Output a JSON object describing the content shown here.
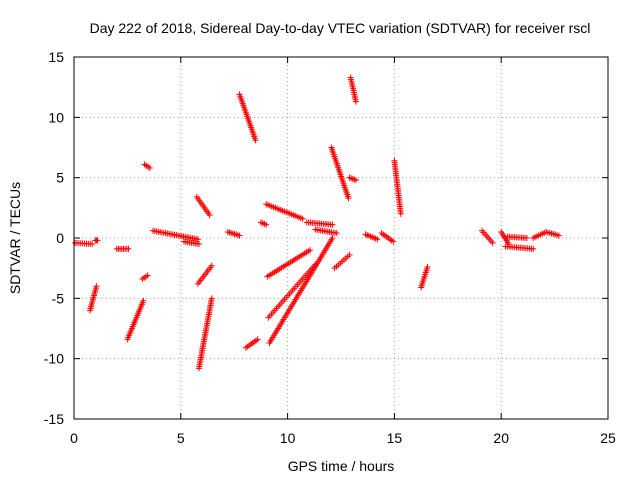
{
  "chart_data": {
    "type": "scatter",
    "title": "Day 222 of 2018, Sidereal Day-to-day VTEC variation (SDTVAR) for receiver rscl",
    "xlabel": "GPS time / hours",
    "ylabel": "SDTVAR / TECUs",
    "xlim": [
      0,
      25
    ],
    "ylim": [
      -15,
      15
    ],
    "xticks": [
      0,
      5,
      10,
      15,
      20,
      25
    ],
    "yticks": [
      -15,
      -10,
      -5,
      0,
      5,
      10,
      15
    ],
    "xtick_labels": [
      "0",
      "5",
      "10",
      "15",
      "20",
      "25"
    ],
    "ytick_labels": [
      "-15",
      "-10",
      "-5",
      "0",
      "5",
      "10",
      "15"
    ],
    "grid": true,
    "marker": "+",
    "color": "#ff0000",
    "segments": [
      {
        "x0": 0.05,
        "x1": 0.85,
        "y0": -0.4,
        "y1": -0.5
      },
      {
        "x0": 1.0,
        "x1": 1.1,
        "y0": -0.2,
        "y1": -0.2
      },
      {
        "x0": 0.75,
        "x1": 1.05,
        "y0": -6.0,
        "y1": -4.0
      },
      {
        "x0": 2.0,
        "x1": 2.55,
        "y0": -0.9,
        "y1": -0.9
      },
      {
        "x0": 2.5,
        "x1": 3.25,
        "y0": -8.4,
        "y1": -5.2
      },
      {
        "x0": 3.2,
        "x1": 3.45,
        "y0": -3.4,
        "y1": -3.1
      },
      {
        "x0": 3.3,
        "x1": 3.55,
        "y0": 6.1,
        "y1": 5.8
      },
      {
        "x0": 3.7,
        "x1": 5.8,
        "y0": 0.6,
        "y1": -0.1
      },
      {
        "x0": 5.15,
        "x1": 5.85,
        "y0": -0.3,
        "y1": -0.5
      },
      {
        "x0": 5.75,
        "x1": 6.35,
        "y0": 3.4,
        "y1": 1.9
      },
      {
        "x0": 5.8,
        "x1": 6.45,
        "y0": -3.8,
        "y1": -2.3
      },
      {
        "x0": 5.85,
        "x1": 6.45,
        "y0": -10.8,
        "y1": -5.0
      },
      {
        "x0": 7.2,
        "x1": 7.75,
        "y0": 0.5,
        "y1": 0.2
      },
      {
        "x0": 7.75,
        "x1": 8.5,
        "y0": 11.9,
        "y1": 8.1
      },
      {
        "x0": 8.05,
        "x1": 8.6,
        "y0": -9.1,
        "y1": -8.4
      },
      {
        "x0": 8.75,
        "x1": 9.0,
        "y0": 1.3,
        "y1": 1.1
      },
      {
        "x0": 9.0,
        "x1": 10.7,
        "y0": 2.8,
        "y1": 1.6
      },
      {
        "x0": 9.05,
        "x1": 11.05,
        "y0": -3.2,
        "y1": -1.0
      },
      {
        "x0": 9.1,
        "x1": 11.3,
        "y0": -6.6,
        "y1": -2.2
      },
      {
        "x0": 9.15,
        "x1": 12.1,
        "y0": -8.7,
        "y1": 0.0
      },
      {
        "x0": 10.9,
        "x1": 12.1,
        "y0": 1.3,
        "y1": 1.1
      },
      {
        "x0": 11.3,
        "x1": 12.3,
        "y0": 0.7,
        "y1": 0.4
      },
      {
        "x0": 12.05,
        "x1": 12.85,
        "y0": 7.5,
        "y1": 3.3
      },
      {
        "x0": 12.2,
        "x1": 12.9,
        "y0": -2.5,
        "y1": -1.4
      },
      {
        "x0": 12.95,
        "x1": 13.2,
        "y0": 13.3,
        "y1": 11.3
      },
      {
        "x0": 12.9,
        "x1": 13.2,
        "y0": 5.0,
        "y1": 4.8
      },
      {
        "x0": 13.65,
        "x1": 14.2,
        "y0": 0.3,
        "y1": -0.1
      },
      {
        "x0": 14.4,
        "x1": 14.95,
        "y0": 0.4,
        "y1": -0.3
      },
      {
        "x0": 15.0,
        "x1": 15.3,
        "y0": 6.4,
        "y1": 2.0
      },
      {
        "x0": 16.25,
        "x1": 16.55,
        "y0": -4.1,
        "y1": -2.4
      },
      {
        "x0": 19.1,
        "x1": 19.6,
        "y0": 0.6,
        "y1": -0.4
      },
      {
        "x0": 20.0,
        "x1": 20.35,
        "y0": 0.5,
        "y1": -0.5
      },
      {
        "x0": 20.2,
        "x1": 21.5,
        "y0": -0.7,
        "y1": -0.9
      },
      {
        "x0": 20.3,
        "x1": 21.2,
        "y0": 0.1,
        "y1": 0.0
      },
      {
        "x0": 21.5,
        "x1": 22.1,
        "y0": 0.0,
        "y1": 0.5
      },
      {
        "x0": 22.1,
        "x1": 22.7,
        "y0": 0.5,
        "y1": 0.2
      }
    ]
  }
}
